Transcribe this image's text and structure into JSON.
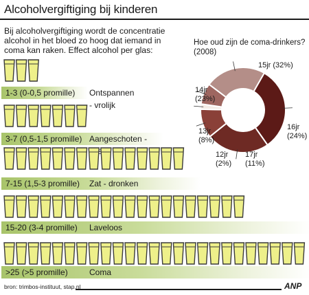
{
  "title": "Alcoholvergiftiging bij kinderen",
  "intro": "Bij alcoholvergiftiging wordt de concentratie alcohol in het bloed zo hoog dat iemand in coma kan raken. Effect alcohol per glas:",
  "levels": [
    {
      "glasses": 3,
      "range": "1-3 (0-0,5 promille)",
      "effect": "Ontspannen - vrolijk"
    },
    {
      "glasses": 7,
      "range": "3-7 (0,5-1,5 promille)",
      "effect": "Aangeschoten - tipsy"
    },
    {
      "glasses": 15,
      "range": "7-15 (1,5-3 promille)",
      "effect": "Zat - dronken"
    },
    {
      "glasses": 20,
      "range": "15-20 (3-4 promille)",
      "effect": "Laveloos"
    },
    {
      "glasses": 25,
      "range": ">25 (>5 promille)",
      "effect": "Coma"
    }
  ],
  "chart_data": {
    "type": "pie",
    "title": "Hoe oud zijn de coma-drinkers? (2008)",
    "categories": [
      "15jr",
      "16jr",
      "17jr",
      "12jr",
      "13jr",
      "14jr"
    ],
    "values": [
      32,
      24,
      11,
      2,
      8,
      23
    ],
    "labels": [
      "15jr (32%)",
      "16jr (24%)",
      "17jr (11%)",
      "12jr (2%)",
      "13jr (8%)",
      "14jr (23%)"
    ],
    "colors": [
      "#5c1a17",
      "#6e2a24",
      "#8a4038",
      "#f4ece6",
      "#9e6660",
      "#b48e88"
    ]
  },
  "colors": {
    "beer": "#eef08a",
    "band": "#a8c46a",
    "outline": "#3a3a3a"
  },
  "source": "bron: trimbos-instituut, stap.nl",
  "logo": "ANP"
}
